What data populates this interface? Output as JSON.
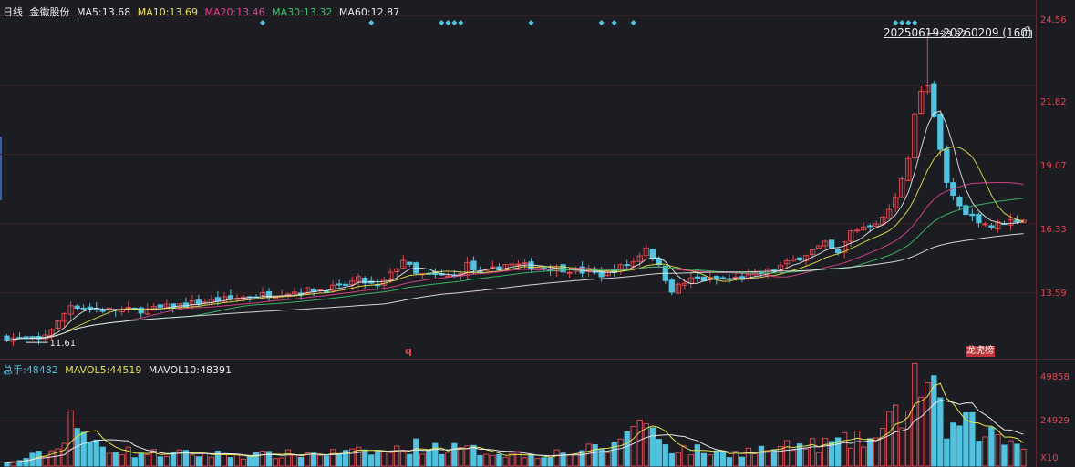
{
  "header": {
    "period": "日线",
    "stock_name": "金徽股份",
    "ma": [
      {
        "label": "MA5:",
        "value": "13.68",
        "color": "#e8e8e8"
      },
      {
        "label": "MA10:",
        "value": "13.69",
        "color": "#e8e34a"
      },
      {
        "label": "MA20:",
        "value": "13.46",
        "color": "#e0458a"
      },
      {
        "label": "MA30:",
        "value": "13.32",
        "color": "#3fc06b"
      },
      {
        "label": "MA60:",
        "value": "12.87",
        "color": "#e8e8e8"
      }
    ]
  },
  "range_label": "20250619-20260209 (160)",
  "price_axis": [
    "24.56",
    "21.82",
    "19.07",
    "16.33",
    "13.59"
  ],
  "high_annotation": "23.87",
  "low_annotation": "11.61",
  "event_marker": "q",
  "event_tag": "龙虎榜",
  "volume_header": {
    "items": [
      {
        "label": "总手:",
        "value": "48482",
        "color": "#4fc3e0"
      },
      {
        "label": "MAVOL5:",
        "value": "44519",
        "color": "#e8e34a"
      },
      {
        "label": "MAVOL10:",
        "value": "48391",
        "color": "#e8e8e8"
      }
    ]
  },
  "volume_axis": [
    "49858",
    "24929",
    "X10"
  ],
  "colors": {
    "up": "#e0454f",
    "down": "#4fc3e0",
    "grid": "#3a1e22",
    "bg": "#1b1d22",
    "diamond": "#4fc3e0"
  },
  "chart_data": {
    "type": "candlestick",
    "count": 160,
    "ylim": [
      11.0,
      24.9
    ],
    "volume_ylim": [
      0,
      52000
    ],
    "high": 23.87,
    "low": 11.61,
    "close_path": [
      [
        0,
        11.8
      ],
      [
        5,
        11.7
      ],
      [
        8,
        12.4
      ],
      [
        10,
        13.1
      ],
      [
        14,
        12.9
      ],
      [
        22,
        12.9
      ],
      [
        30,
        13.2
      ],
      [
        40,
        13.5
      ],
      [
        52,
        13.8
      ],
      [
        55,
        14.1
      ],
      [
        58,
        13.8
      ],
      [
        60,
        14.3
      ],
      [
        62,
        14.9
      ],
      [
        64,
        14.3
      ],
      [
        70,
        14.2
      ],
      [
        72,
        14.7
      ],
      [
        74,
        14.3
      ],
      [
        78,
        14.7
      ],
      [
        84,
        14.6
      ],
      [
        88,
        14.5
      ],
      [
        93,
        14.3
      ],
      [
        98,
        14.8
      ],
      [
        100,
        15.4
      ],
      [
        102,
        14.6
      ],
      [
        104,
        13.7
      ],
      [
        107,
        14.1
      ],
      [
        112,
        14.1
      ],
      [
        116,
        14.2
      ],
      [
        120,
        14.5
      ],
      [
        124,
        15.0
      ],
      [
        128,
        15.5
      ],
      [
        130,
        15.1
      ],
      [
        132,
        16.0
      ],
      [
        135,
        16.3
      ],
      [
        137,
        16.5
      ],
      [
        139,
        17.3
      ],
      [
        141,
        19.0
      ],
      [
        142,
        20.7
      ],
      [
        143,
        21.5
      ],
      [
        144,
        21.8
      ],
      [
        147,
        17.9
      ],
      [
        149,
        17.0
      ],
      [
        151,
        16.6
      ],
      [
        154,
        16.2
      ],
      [
        156,
        16.4
      ],
      [
        159,
        16.5
      ]
    ],
    "volume_level": [
      [
        0,
        1500
      ],
      [
        8,
        9000
      ],
      [
        10,
        30000
      ],
      [
        12,
        14000
      ],
      [
        20,
        7000
      ],
      [
        40,
        6000
      ],
      [
        60,
        8000
      ],
      [
        64,
        11000
      ],
      [
        75,
        8000
      ],
      [
        82,
        6000
      ],
      [
        95,
        10000
      ],
      [
        98,
        26000
      ],
      [
        100,
        22000
      ],
      [
        104,
        10000
      ],
      [
        112,
        7000
      ],
      [
        128,
        12000
      ],
      [
        136,
        15000
      ],
      [
        140,
        30000
      ],
      [
        142,
        48000
      ],
      [
        144,
        44000
      ],
      [
        147,
        20000
      ],
      [
        151,
        22000
      ],
      [
        156,
        14000
      ],
      [
        159,
        12000
      ]
    ],
    "ma": [
      {
        "name": "MA5",
        "color": "#e8e8e8"
      },
      {
        "name": "MA10",
        "color": "#e8e34a"
      },
      {
        "name": "MA20",
        "color": "#e0458a"
      },
      {
        "name": "MA30",
        "color": "#3fc06b"
      },
      {
        "name": "MA60",
        "color": "#e8e8e8"
      }
    ],
    "event_days": [
      40,
      57,
      68,
      69,
      70,
      71,
      82,
      93,
      95,
      98,
      139,
      140,
      141,
      142
    ]
  }
}
